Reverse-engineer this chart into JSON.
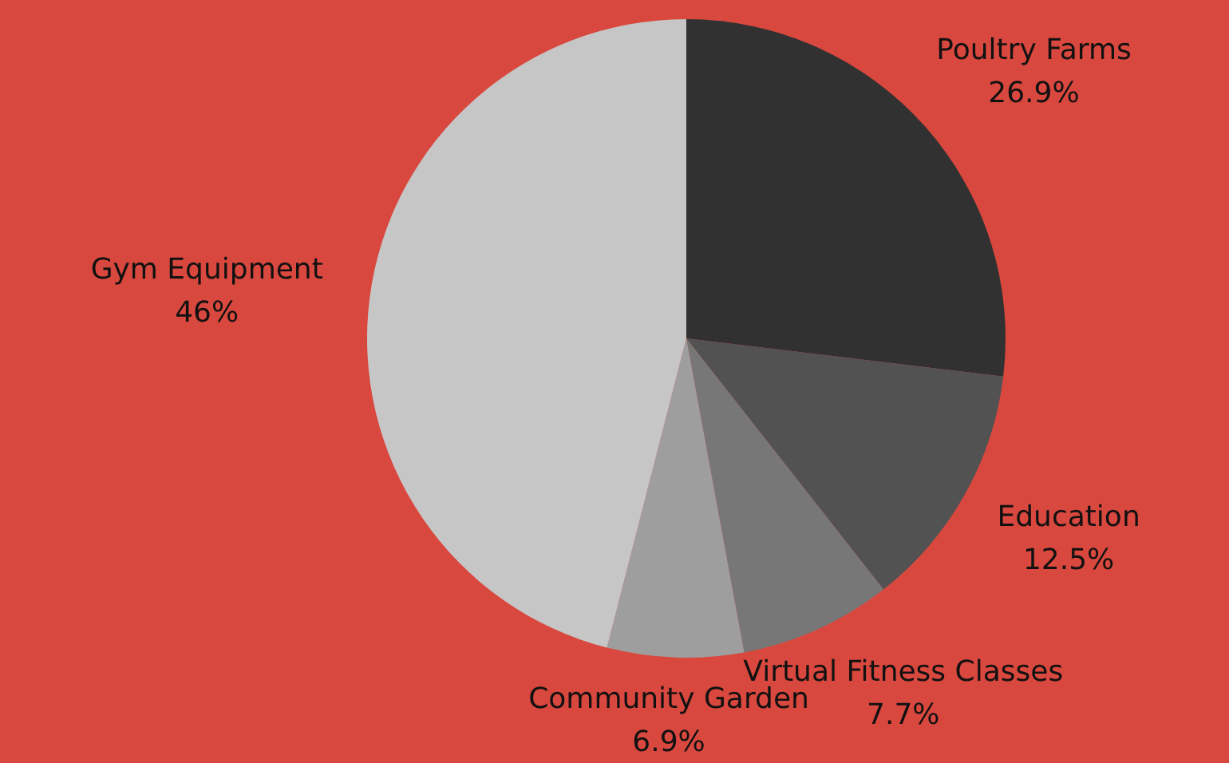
{
  "chart_data": {
    "type": "pie",
    "categories": [
      "Poultry Farms",
      "Education",
      "Virtual Fitness Classes",
      "Community Garden",
      "Gym Equipment"
    ],
    "values": [
      26.9,
      12.5,
      7.7,
      6.9,
      46
    ],
    "value_labels": [
      "26.9%",
      "12.5%",
      "7.7%",
      "6.9%",
      "46%"
    ],
    "colors": [
      "#313131",
      "#525252",
      "#777777",
      "#9e9e9e",
      "#c6c6c6"
    ]
  }
}
